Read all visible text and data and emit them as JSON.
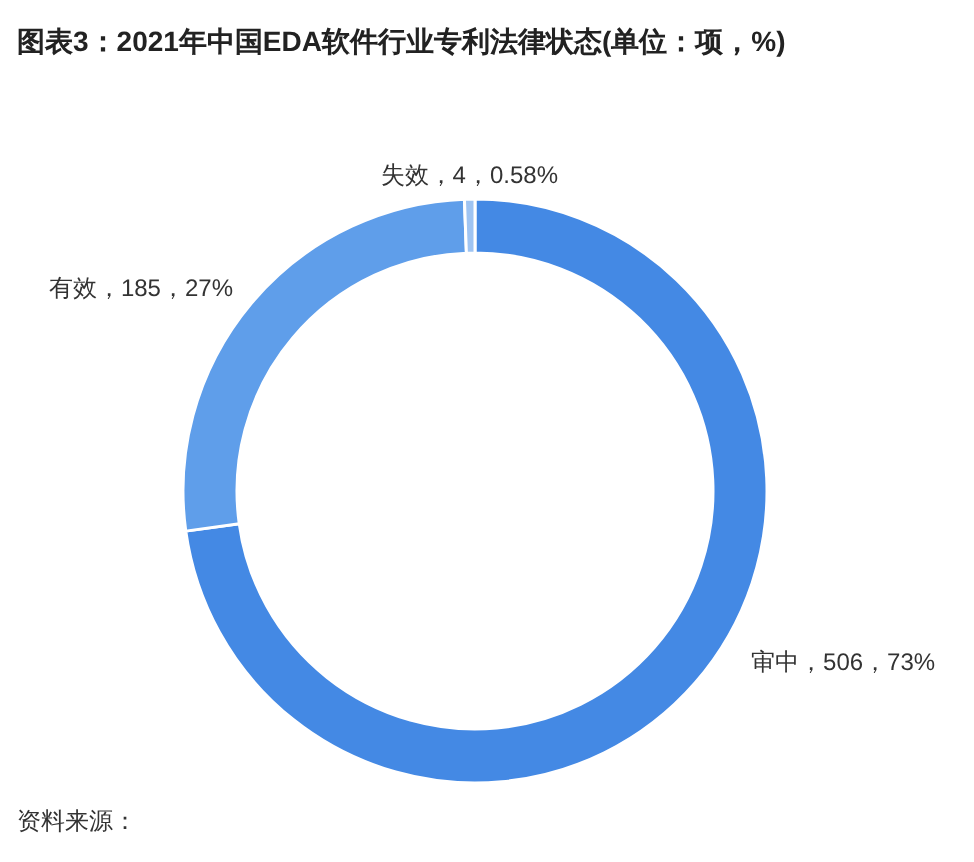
{
  "chart_data": {
    "type": "donut",
    "title": "图表3：2021年中国EDA软件行业专利法律状态(单位：项，%)",
    "categories": [
      "审中",
      "有效",
      "失效"
    ],
    "values": [
      506,
      185,
      4
    ],
    "colors": [
      "#4489e4",
      "#5f9eea",
      "#9fc4f2"
    ],
    "value_labels": [
      "506，73%",
      "185，27%",
      "4，0.58%"
    ],
    "annotations": [
      "资料来源："
    ]
  }
}
